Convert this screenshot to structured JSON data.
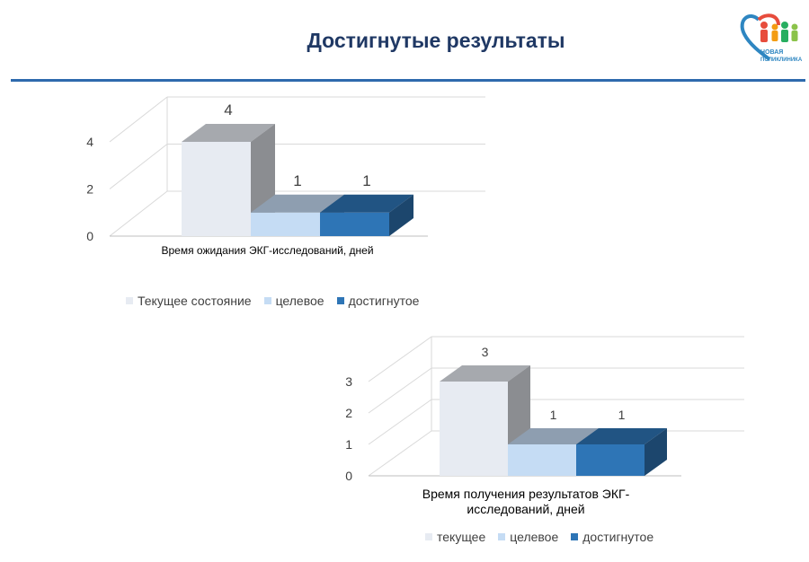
{
  "header": {
    "title": "Достигнутые  результаты",
    "logo_text_line1": "НОВАЯ",
    "logo_text_line2": "ПОЛИКЛИНИКА"
  },
  "colors": {
    "current": "#e7ebf2",
    "target": "#c5dcf4",
    "achieved": "#2e75b6",
    "accent": "#1f3864",
    "rule": "#2e6aad"
  },
  "chart_data": [
    {
      "type": "bar",
      "categories": [
        "Время ожидания ЭКГ-исследований,  дней"
      ],
      "series": [
        {
          "name": "Текущее  состояние",
          "values": [
            4
          ]
        },
        {
          "name": "целевое",
          "values": [
            1
          ]
        },
        {
          "name": "достигнутое",
          "values": [
            1
          ]
        }
      ],
      "title": "",
      "xlabel": "",
      "ylabel": "",
      "ylim": [
        0,
        4
      ],
      "yticks": [
        0,
        2,
        4
      ],
      "grid": true,
      "legend": "bottom",
      "style": "3d-column"
    },
    {
      "type": "bar",
      "categories": [
        "Время получения  результатов  ЭКГ-исследований,  дней"
      ],
      "series": [
        {
          "name": "текущее",
          "values": [
            3
          ]
        },
        {
          "name": "целевое",
          "values": [
            1
          ]
        },
        {
          "name": "достигнутое",
          "values": [
            1
          ]
        }
      ],
      "title": "",
      "xlabel": "",
      "ylabel": "",
      "ylim": [
        0,
        3
      ],
      "yticks": [
        0,
        1,
        2,
        3
      ],
      "grid": true,
      "legend": "bottom",
      "style": "3d-column"
    }
  ]
}
